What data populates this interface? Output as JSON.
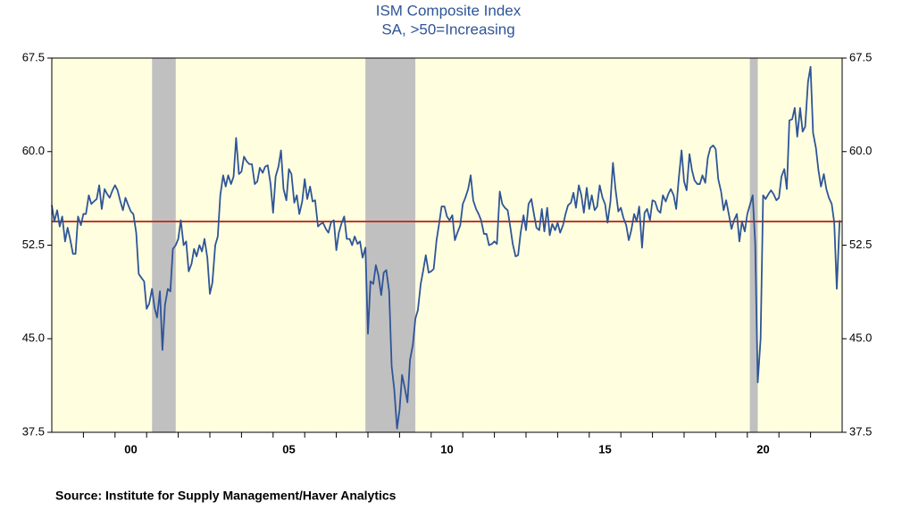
{
  "chart_data": {
    "type": "line",
    "title": "ISM Composite Index",
    "subtitle": "SA, >50=Increasing",
    "source": "Source:   Institute for Supply Management/Haver Analytics",
    "color": "#2f5597",
    "background": "#ffffe0",
    "shading_color": "#c0c0c0",
    "reference_color": "#c0392b",
    "reference": 54.4,
    "shading": [
      [
        2001.17,
        2001.92
      ],
      [
        2007.92,
        2009.5
      ],
      [
        2020.08,
        2020.33
      ]
    ],
    "xlim": [
      1998,
      2023
    ],
    "ylim": [
      37.5,
      67.5
    ],
    "yticks": [
      37.5,
      {
        "value": 45,
        "label": "45.0"
      },
      52.5,
      {
        "value": 60,
        "label": "60.0"
      },
      67.5
    ],
    "xticks": [
      {
        "value": 2000.5,
        "label": "00"
      },
      {
        "value": 2005.5,
        "label": "05"
      },
      {
        "value": 2010.5,
        "label": "10"
      },
      {
        "value": 2015.5,
        "label": "15"
      },
      {
        "value": 2020.5,
        "label": "20"
      }
    ],
    "x": [
      1998,
      1998.08,
      1998.17,
      1998.25,
      1998.33,
      1998.42,
      1998.5,
      1998.58,
      1998.67,
      1998.75,
      1998.83,
      1998.92,
      1999,
      1999.08,
      1999.17,
      1999.25,
      1999.33,
      1999.42,
      1999.5,
      1999.58,
      1999.67,
      1999.75,
      1999.83,
      1999.92,
      2000,
      2000.08,
      2000.17,
      2000.25,
      2000.33,
      2000.42,
      2000.5,
      2000.58,
      2000.67,
      2000.75,
      2000.83,
      2000.92,
      2001,
      2001.08,
      2001.17,
      2001.25,
      2001.33,
      2001.42,
      2001.5,
      2001.58,
      2001.67,
      2001.75,
      2001.83,
      2001.92,
      2002,
      2002.08,
      2002.17,
      2002.25,
      2002.33,
      2002.42,
      2002.5,
      2002.58,
      2002.67,
      2002.75,
      2002.83,
      2002.92,
      2003,
      2003.08,
      2003.17,
      2003.25,
      2003.33,
      2003.42,
      2003.5,
      2003.58,
      2003.67,
      2003.75,
      2003.83,
      2003.92,
      2004,
      2004.08,
      2004.17,
      2004.25,
      2004.33,
      2004.42,
      2004.5,
      2004.58,
      2004.67,
      2004.75,
      2004.83,
      2004.92,
      2005,
      2005.08,
      2005.17,
      2005.25,
      2005.33,
      2005.42,
      2005.5,
      2005.58,
      2005.67,
      2005.75,
      2005.83,
      2005.92,
      2006,
      2006.08,
      2006.17,
      2006.25,
      2006.33,
      2006.42,
      2006.5,
      2006.58,
      2006.67,
      2006.75,
      2006.83,
      2006.92,
      2007,
      2007.08,
      2007.17,
      2007.25,
      2007.33,
      2007.42,
      2007.5,
      2007.58,
      2007.67,
      2007.75,
      2007.83,
      2007.92,
      2008,
      2008.08,
      2008.17,
      2008.25,
      2008.33,
      2008.42,
      2008.5,
      2008.58,
      2008.67,
      2008.75,
      2008.83,
      2008.92,
      2009,
      2009.08,
      2009.17,
      2009.25,
      2009.33,
      2009.42,
      2009.5,
      2009.58,
      2009.67,
      2009.75,
      2009.83,
      2009.92,
      2010,
      2010.08,
      2010.17,
      2010.25,
      2010.33,
      2010.42,
      2010.5,
      2010.58,
      2010.67,
      2010.75,
      2010.83,
      2010.92,
      2011,
      2011.08,
      2011.17,
      2011.25,
      2011.33,
      2011.42,
      2011.5,
      2011.58,
      2011.67,
      2011.75,
      2011.83,
      2011.92,
      2012,
      2012.08,
      2012.17,
      2012.25,
      2012.33,
      2012.42,
      2012.5,
      2012.58,
      2012.67,
      2012.75,
      2012.83,
      2012.92,
      2013,
      2013.08,
      2013.17,
      2013.25,
      2013.33,
      2013.42,
      2013.5,
      2013.58,
      2013.67,
      2013.75,
      2013.83,
      2013.92,
      2014,
      2014.08,
      2014.17,
      2014.25,
      2014.33,
      2014.42,
      2014.5,
      2014.58,
      2014.67,
      2014.75,
      2014.83,
      2014.92,
      2015,
      2015.08,
      2015.17,
      2015.25,
      2015.33,
      2015.42,
      2015.5,
      2015.58,
      2015.67,
      2015.75,
      2015.83,
      2015.92,
      2016,
      2016.08,
      2016.17,
      2016.25,
      2016.33,
      2016.42,
      2016.5,
      2016.58,
      2016.67,
      2016.75,
      2016.83,
      2016.92,
      2017,
      2017.08,
      2017.17,
      2017.25,
      2017.33,
      2017.42,
      2017.5,
      2017.58,
      2017.67,
      2017.75,
      2017.83,
      2017.92,
      2018,
      2018.08,
      2018.17,
      2018.25,
      2018.33,
      2018.42,
      2018.5,
      2018.58,
      2018.67,
      2018.75,
      2018.83,
      2018.92,
      2019,
      2019.08,
      2019.17,
      2019.25,
      2019.33,
      2019.42,
      2019.5,
      2019.58,
      2019.67,
      2019.75,
      2019.83,
      2019.92,
      2020,
      2020.08,
      2020.17,
      2020.25,
      2020.33,
      2020.42,
      2020.5,
      2020.58,
      2020.67,
      2020.75,
      2020.83,
      2020.92,
      2021,
      2021.08,
      2021.17,
      2021.25,
      2021.33,
      2021.42,
      2021.5,
      2021.58,
      2021.67,
      2021.75,
      2021.83,
      2021.92,
      2022,
      2022.08,
      2022.17,
      2022.25,
      2022.33,
      2022.42,
      2022.5,
      2022.58,
      2022.67,
      2022.75,
      2022.83,
      2022.92
    ],
    "values": [
      55.7,
      54.4,
      55.3,
      54.0,
      54.8,
      52.8,
      53.9,
      53.0,
      51.8,
      51.8,
      54.8,
      54.1,
      55.0,
      55.0,
      56.5,
      55.8,
      56.0,
      56.2,
      57.3,
      55.4,
      57.0,
      56.6,
      56.3,
      56.9,
      57.3,
      56.9,
      56.0,
      55.3,
      56.3,
      55.7,
      55.2,
      55.0,
      53.5,
      50.2,
      49.9,
      49.6,
      47.4,
      47.8,
      49.0,
      47.5,
      46.7,
      48.8,
      44.1,
      47.7,
      49.0,
      48.8,
      52.2,
      52.5,
      53.0,
      54.5,
      52.5,
      52.8,
      50.4,
      51.0,
      52.2,
      51.6,
      52.5,
      52.0,
      53.0,
      51.5,
      48.6,
      49.5,
      52.5,
      53.2,
      56.5,
      58.1,
      57.2,
      58.1,
      57.4,
      58.0,
      61.1,
      58.2,
      58.4,
      59.6,
      59.2,
      59.0,
      59.0,
      57.4,
      57.6,
      58.7,
      58.3,
      58.8,
      58.9,
      57.4,
      55.1,
      58.0,
      58.8,
      60.1,
      57.0,
      56.1,
      58.6,
      58.2,
      55.9,
      56.5,
      55.0,
      56.0,
      57.8,
      56.2,
      57.2,
      56.0,
      56.1,
      54.0,
      54.2,
      54.3,
      53.8,
      53.5,
      54.3,
      54.5,
      52.1,
      53.5,
      54.3,
      54.8,
      53.0,
      53.0,
      52.5,
      53.2,
      52.6,
      52.8,
      51.5,
      52.3,
      45.4,
      49.6,
      49.4,
      50.9,
      50.1,
      48.5,
      50.3,
      50.5,
      48.8,
      42.8,
      41.0,
      37.8,
      39.3,
      42.1,
      41.0,
      39.9,
      43.3,
      44.5,
      46.6,
      47.3,
      49.4,
      50.5,
      51.7,
      50.3,
      50.4,
      50.6,
      52.9,
      54.2,
      55.6,
      55.6,
      54.8,
      54.5,
      54.9,
      52.9,
      53.5,
      54.1,
      55.8,
      56.3,
      57.0,
      58.1,
      56.1,
      55.4,
      55.0,
      54.5,
      53.4,
      53.4,
      52.5,
      52.6,
      52.8,
      52.6,
      56.8,
      55.8,
      55.5,
      55.3,
      54.0,
      52.6,
      51.6,
      51.7,
      53.5,
      54.9,
      53.7,
      55.8,
      56.2,
      55.0,
      53.9,
      53.7,
      55.4,
      53.6,
      55.5,
      53.3,
      54.2,
      53.7,
      54.3,
      53.5,
      54.1,
      55.0,
      55.7,
      55.9,
      56.7,
      55.5,
      57.3,
      56.5,
      55.1,
      57.1,
      55.4,
      56.5,
      55.3,
      55.6,
      57.3,
      56.3,
      55.8,
      54.3,
      56.0,
      59.1,
      57.0,
      55.2,
      55.5,
      54.7,
      54.1,
      52.9,
      53.7,
      55.0,
      54.4,
      55.6,
      52.3,
      55.1,
      55.4,
      54.5,
      56.1,
      56.0,
      55.3,
      55.1,
      56.5,
      56.0,
      56.6,
      57.0,
      56.5,
      55.4,
      57.8,
      60.1,
      57.6,
      56.9,
      59.8,
      58.5,
      57.7,
      57.4,
      57.4,
      58.1,
      57.5,
      59.5,
      60.3,
      60.5,
      60.2,
      57.8,
      56.8,
      55.3,
      56.1,
      54.9,
      53.8,
      54.5,
      55.0,
      52.8,
      54.4,
      53.6,
      55.0,
      55.7,
      56.5,
      52.6,
      41.5,
      45.0,
      56.5,
      56.2,
      56.6,
      56.9,
      56.6,
      56.1,
      56.3,
      58.0,
      58.6,
      57.0,
      62.5,
      62.6,
      63.5,
      61.2,
      63.5,
      61.6,
      62.0,
      65.6,
      66.8,
      61.5,
      60.3,
      58.5,
      57.2,
      58.2,
      57.0,
      56.3,
      55.8,
      54.3,
      49.0,
      54.5
    ]
  }
}
